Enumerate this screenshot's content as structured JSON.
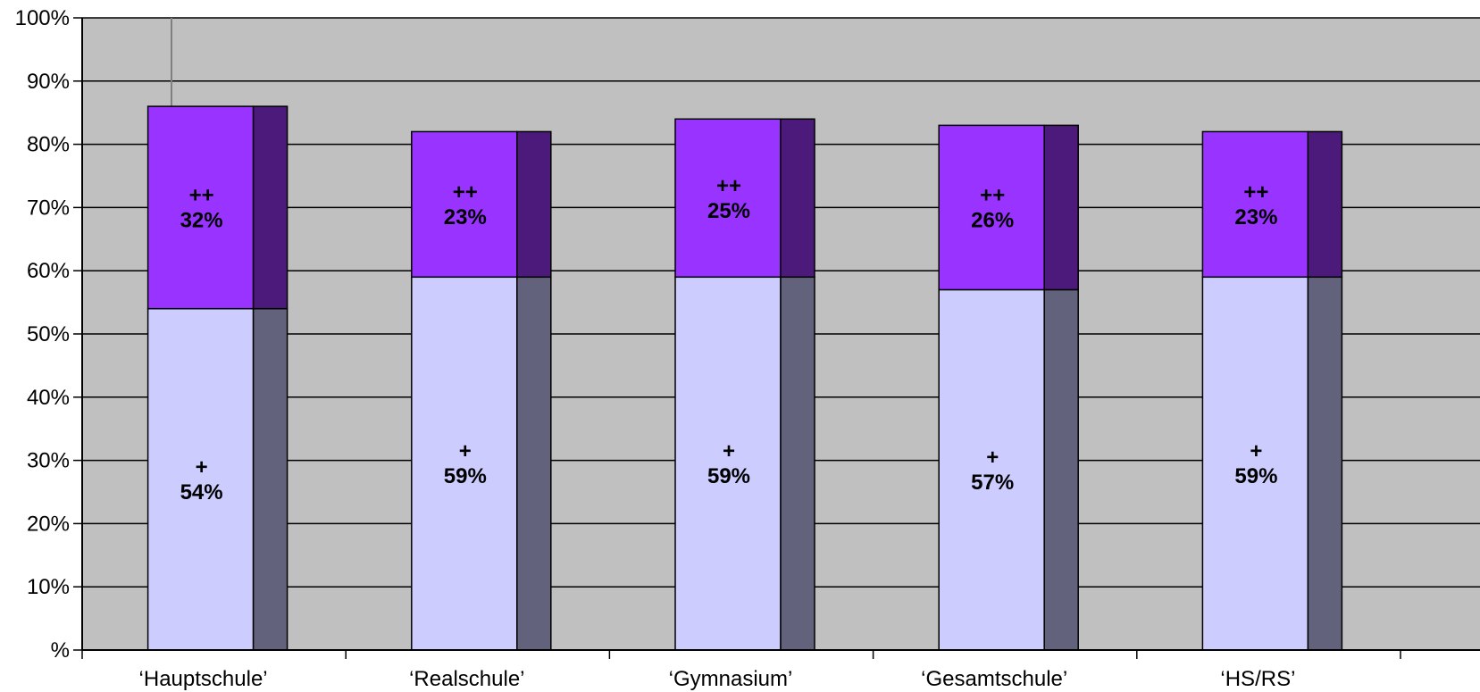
{
  "chart_data": {
    "type": "bar",
    "stacked": true,
    "three_d": true,
    "grid": true,
    "ylim": [
      0,
      100
    ],
    "yticks": [
      "%",
      "10%",
      "20%",
      "30%",
      "40%",
      "50%",
      "60%",
      "70%",
      "80%",
      "90%",
      "100%"
    ],
    "categories": [
      "‘Hauptschule’",
      "‘Realschule’",
      "‘Gymnasium’",
      "‘Gesamtschule’",
      "‘HS/RS’"
    ],
    "series": [
      {
        "key": "+",
        "values": [
          54,
          59,
          59,
          57,
          59
        ],
        "labels": [
          "54%",
          "59%",
          "59%",
          "57%",
          "59%"
        ],
        "color": "#ccccff",
        "side_color": "#62627c"
      },
      {
        "key": "++",
        "values": [
          32,
          23,
          25,
          26,
          23
        ],
        "labels": [
          "32%",
          "23%",
          "25%",
          "26%",
          "23%"
        ],
        "color": "#9933ff",
        "side_color": "#4c1a7a"
      }
    ],
    "colors": {
      "plot_background": "#c0c0c0",
      "gridline": "#000000"
    }
  }
}
